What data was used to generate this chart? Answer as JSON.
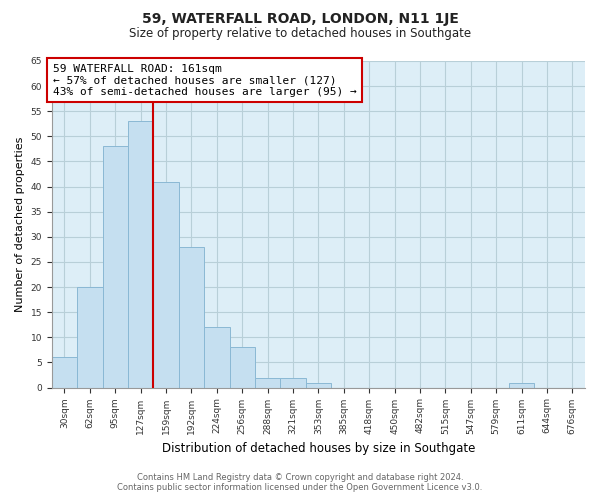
{
  "title": "59, WATERFALL ROAD, LONDON, N11 1JE",
  "subtitle": "Size of property relative to detached houses in Southgate",
  "xlabel": "Distribution of detached houses by size in Southgate",
  "ylabel": "Number of detached properties",
  "bin_labels": [
    "30sqm",
    "62sqm",
    "95sqm",
    "127sqm",
    "159sqm",
    "192sqm",
    "224sqm",
    "256sqm",
    "288sqm",
    "321sqm",
    "353sqm",
    "385sqm",
    "418sqm",
    "450sqm",
    "482sqm",
    "515sqm",
    "547sqm",
    "579sqm",
    "611sqm",
    "644sqm",
    "676sqm"
  ],
  "bin_values": [
    6,
    20,
    48,
    53,
    41,
    28,
    12,
    8,
    2,
    2,
    1,
    0,
    0,
    0,
    0,
    0,
    0,
    0,
    1,
    0,
    0
  ],
  "bar_color": "#c5dff0",
  "bar_edge_color": "#8ab8d4",
  "property_line_color": "#cc0000",
  "annotation_line1": "59 WATERFALL ROAD: 161sqm",
  "annotation_line2": "← 57% of detached houses are smaller (127)",
  "annotation_line3": "43% of semi-detached houses are larger (95) →",
  "annotation_box_edge_color": "#cc0000",
  "ylim": [
    0,
    65
  ],
  "yticks": [
    0,
    5,
    10,
    15,
    20,
    25,
    30,
    35,
    40,
    45,
    50,
    55,
    60,
    65
  ],
  "footer_line1": "Contains HM Land Registry data © Crown copyright and database right 2024.",
  "footer_line2": "Contains public sector information licensed under the Open Government Licence v3.0.",
  "background_color": "#ffffff",
  "plot_bg_color": "#ddeef7",
  "grid_color": "#b8cfd8"
}
